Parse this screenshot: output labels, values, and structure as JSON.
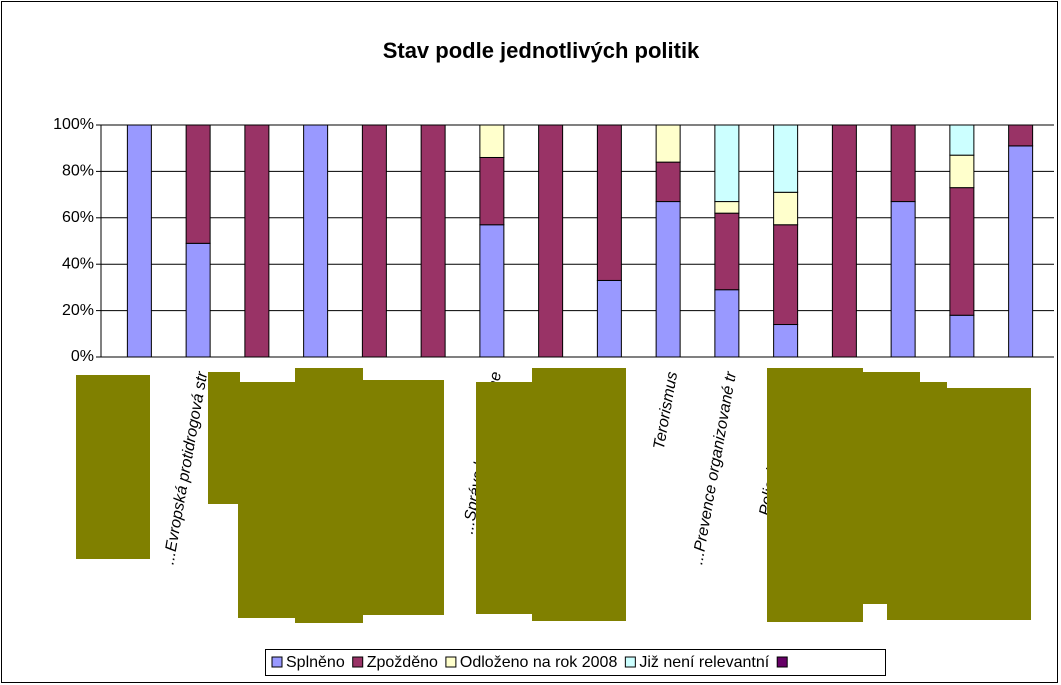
{
  "chart_data": {
    "type": "bar",
    "stacked": true,
    "title": "Stav podle jednotlivých politik",
    "categories": [
      null,
      "...Evropská protidrogová str",
      null,
      null,
      null,
      null,
      "...Správa hranic, biome",
      null,
      null,
      "Terorismus",
      "...Prevence organizované tr",
      "Policejní a celní spol",
      null,
      null,
      null,
      null
    ],
    "series": [
      {
        "name": "Splněno",
        "color": "#9999ff",
        "values": [
          100,
          49,
          0,
          100,
          0,
          0,
          57,
          0,
          33,
          67,
          29,
          14,
          0,
          67,
          18,
          91
        ]
      },
      {
        "name": "Zpožděno",
        "color": "#993366",
        "values": [
          0,
          51,
          100,
          0,
          100,
          100,
          29,
          100,
          67,
          17,
          33,
          43,
          100,
          33,
          55,
          9
        ]
      },
      {
        "name": "Odloženo na rok 2008",
        "color": "#ffffcc",
        "values": [
          0,
          0,
          0,
          0,
          0,
          0,
          14,
          0,
          0,
          16,
          5,
          14,
          0,
          0,
          14,
          0
        ]
      },
      {
        "name": "Již není relevantní",
        "color": "#ccffff",
        "values": [
          0,
          0,
          0,
          0,
          0,
          0,
          0,
          0,
          0,
          0,
          33,
          29,
          0,
          0,
          13,
          0
        ]
      }
    ],
    "ylim": [
      0,
      100
    ],
    "yticks": [
      {
        "value": 0,
        "label": "0%"
      },
      {
        "value": 20,
        "label": "20%"
      },
      {
        "value": 40,
        "label": "40%"
      },
      {
        "value": 60,
        "label": "60%"
      },
      {
        "value": 80,
        "label": "80%"
      },
      {
        "value": 100,
        "label": "100%"
      }
    ],
    "grid": true,
    "legend": "bottom"
  }
}
